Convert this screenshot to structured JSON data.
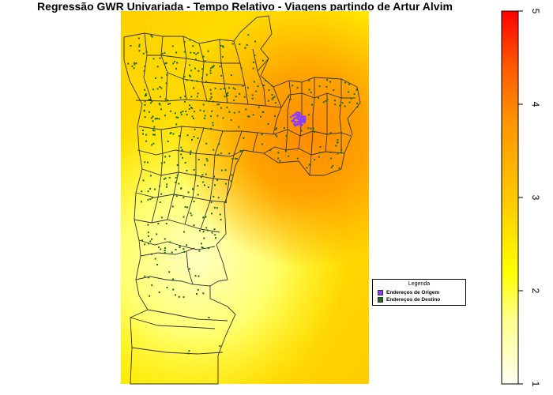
{
  "title": "Regressão GWR Univariada - Tempo Relativo - Viagens partindo de Artur Alvim",
  "legend": {
    "title": "Legenda",
    "items": [
      {
        "label": "Endereços de Origem",
        "color": "#8b3dff"
      },
      {
        "label": "Endereços de Destino",
        "color": "#1a6b1a"
      }
    ]
  },
  "colorbar": {
    "ticks": [
      "1",
      "2",
      "3",
      "4",
      "5"
    ],
    "min": 1,
    "max": 5,
    "palette": [
      "#fffff0",
      "#ffff80",
      "#ffff00",
      "#ffd700",
      "#ffa500",
      "#ff6a00",
      "#ff0000"
    ]
  },
  "colors": {
    "surface_yellow": "#ffea00",
    "surface_orange": "#ff9a00",
    "boundary": "#333333",
    "origin_points": "#8b3dff",
    "destination_points": "#1a6b1a"
  }
}
